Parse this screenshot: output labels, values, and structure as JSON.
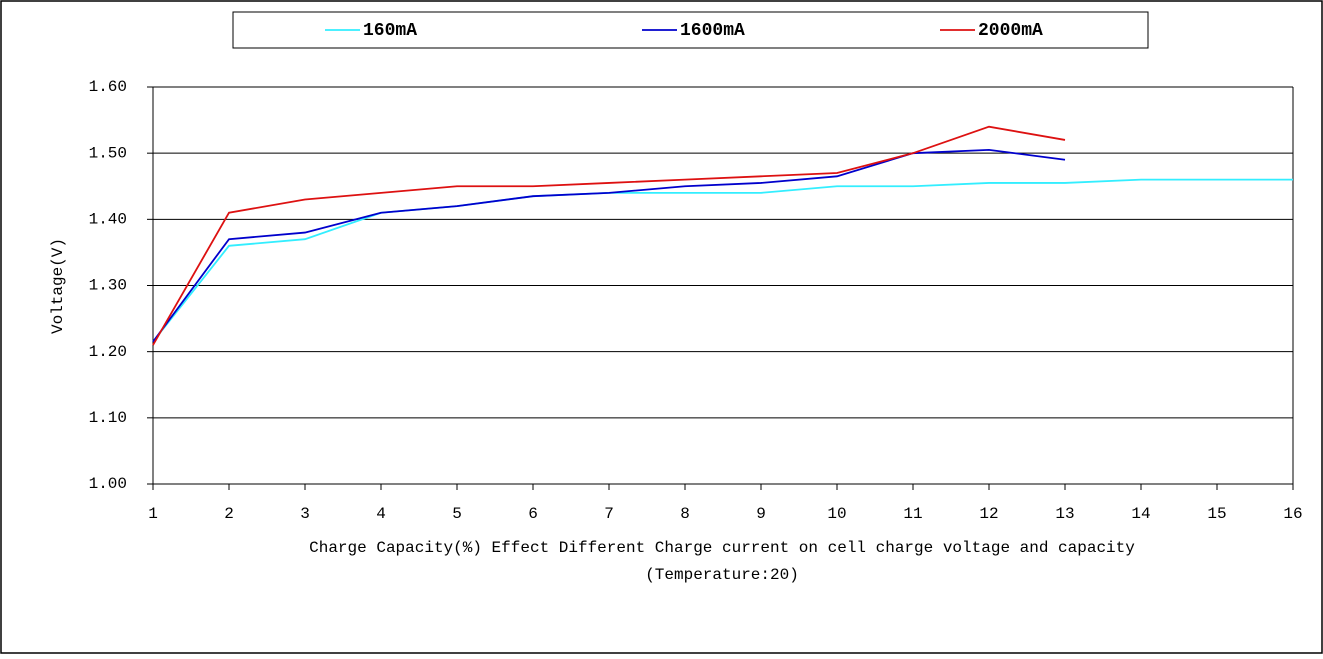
{
  "chart_data": {
    "type": "line",
    "ylabel": "Voltage(V)",
    "xlabel": "Charge Capacity(%) Effect Different Charge current on cell charge voltage and capacity",
    "subtitle": "(Temperature:20)",
    "x": [
      1,
      2,
      3,
      4,
      5,
      6,
      7,
      8,
      9,
      10,
      11,
      12,
      13,
      14,
      15,
      16
    ],
    "series": [
      {
        "name": "160mA",
        "color": "#33eeff",
        "values": [
          1.215,
          1.36,
          1.37,
          1.41,
          1.42,
          1.435,
          1.44,
          1.44,
          1.44,
          1.45,
          1.45,
          1.455,
          1.455,
          1.46,
          1.46,
          1.46
        ]
      },
      {
        "name": "1600mA",
        "color": "#0000cc",
        "values": [
          1.215,
          1.37,
          1.38,
          1.41,
          1.42,
          1.435,
          1.44,
          1.45,
          1.455,
          1.465,
          1.5,
          1.505,
          1.49,
          null,
          null,
          null
        ]
      },
      {
        "name": "2000mA",
        "color": "#dd1111",
        "values": [
          1.21,
          1.41,
          1.43,
          1.44,
          1.45,
          1.45,
          1.455,
          1.46,
          1.465,
          1.47,
          1.5,
          1.54,
          1.52,
          null,
          null,
          null
        ]
      }
    ],
    "xlim": [
      1,
      16
    ],
    "xticks": [
      1,
      2,
      3,
      4,
      5,
      6,
      7,
      8,
      9,
      10,
      11,
      12,
      13,
      14,
      15,
      16
    ],
    "ylim": [
      1,
      1.6
    ],
    "yticks": [
      {
        "value": 1,
        "label": "1.00"
      },
      {
        "value": 1.1,
        "label": "1.10"
      },
      {
        "value": 1.2,
        "label": "1.20"
      },
      {
        "value": 1.3,
        "label": "1.30"
      },
      {
        "value": 1.4,
        "label": "1.40"
      },
      {
        "value": 1.5,
        "label": "1.50"
      },
      {
        "value": 1.6,
        "label": "1.60"
      }
    ],
    "grid": true,
    "legend": "top"
  }
}
